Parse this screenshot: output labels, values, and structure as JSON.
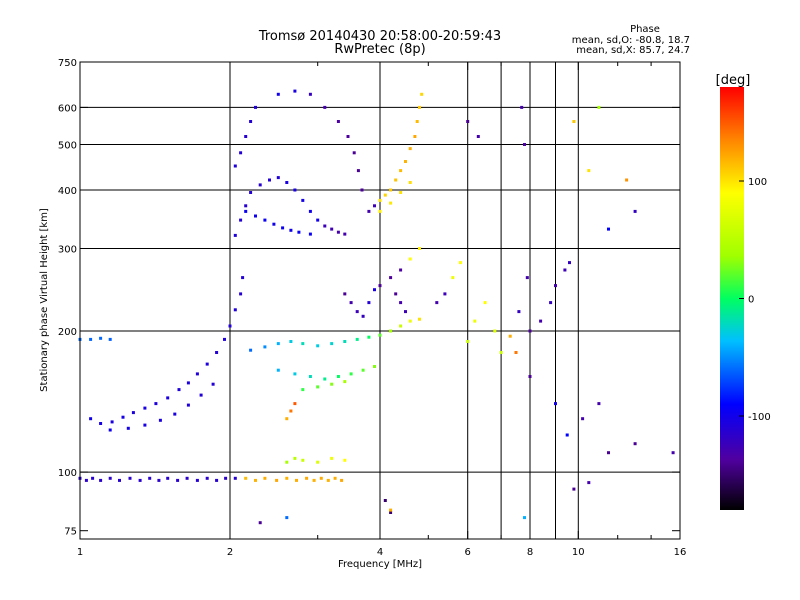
{
  "chart_data": {
    "type": "scatter",
    "title": "Tromsø 20140430 20:58:00-20:59:43",
    "subtitle": "RwPretec (8p)",
    "xlabel": "Frequency [MHz]",
    "ylabel": "Stationary phase Virtual Height [km]",
    "x_scale": "log",
    "y_scale": "log",
    "xlim": [
      1,
      16
    ],
    "ylim": [
      72,
      750
    ],
    "x_ticks": [
      1,
      2,
      4,
      6,
      8,
      10,
      16
    ],
    "x_tick_labels": [
      "1",
      "2",
      "4",
      "6",
      "8",
      "10",
      "16"
    ],
    "x_minor_ticks": [
      3,
      5,
      7,
      9,
      12,
      14
    ],
    "x_gridlines": [
      2,
      4,
      6,
      7,
      8,
      9,
      10
    ],
    "y_ticks": [
      75,
      100,
      200,
      300,
      400,
      500,
      600,
      750
    ],
    "y_tick_labels": [
      "75",
      "100",
      "200",
      "300",
      "400",
      "500",
      "600",
      "750"
    ],
    "y_gridlines": [
      100,
      200,
      300,
      400,
      500,
      600
    ],
    "grid": true,
    "stats_title": "Phase",
    "stats": [
      "mean, sd,O: -80.8, 18.7",
      "mean, sd,X:  85.7, 24.7"
    ],
    "colorbar": {
      "label": "[deg]",
      "range": [
        -180,
        180
      ],
      "ticks": [
        100,
        0,
        -100
      ],
      "tick_labels": [
        "100",
        "0",
        "-100"
      ]
    },
    "series": [
      {
        "points": [
          [
            1.0,
            97,
            -115
          ],
          [
            1.03,
            96,
            -115
          ],
          [
            1.06,
            97,
            -112
          ],
          [
            1.1,
            96,
            -114
          ],
          [
            1.15,
            97,
            -115
          ],
          [
            1.2,
            96,
            -113
          ],
          [
            1.26,
            97,
            -115
          ],
          [
            1.32,
            96,
            -114
          ],
          [
            1.38,
            97,
            -112
          ],
          [
            1.44,
            96,
            -115
          ],
          [
            1.5,
            97,
            -113
          ],
          [
            1.57,
            96,
            -114
          ],
          [
            1.64,
            97,
            -115
          ],
          [
            1.72,
            96,
            -112
          ],
          [
            1.8,
            97,
            -114
          ],
          [
            1.88,
            96,
            -113
          ],
          [
            1.96,
            97,
            -115
          ],
          [
            2.05,
            97,
            -112
          ],
          [
            2.15,
            97,
            115
          ],
          [
            2.25,
            96,
            118
          ],
          [
            2.35,
            97,
            120
          ],
          [
            2.48,
            96,
            122
          ],
          [
            2.6,
            97,
            118
          ],
          [
            2.72,
            96,
            120
          ],
          [
            2.85,
            97,
            122
          ],
          [
            2.95,
            96,
            119
          ],
          [
            3.05,
            97,
            121
          ],
          [
            3.15,
            96,
            118
          ],
          [
            3.25,
            97,
            120
          ],
          [
            3.35,
            96,
            122
          ],
          [
            1.05,
            130,
            -100
          ],
          [
            1.1,
            127,
            -103
          ],
          [
            1.16,
            128,
            -105
          ],
          [
            1.22,
            131,
            -102
          ],
          [
            1.28,
            134,
            -106
          ],
          [
            1.35,
            137,
            -104
          ],
          [
            1.42,
            140,
            -107
          ],
          [
            1.5,
            144,
            -105
          ],
          [
            1.58,
            150,
            -108
          ],
          [
            1.65,
            155,
            -106
          ],
          [
            1.72,
            162,
            -109
          ],
          [
            1.8,
            170,
            -107
          ],
          [
            1.88,
            180,
            -110
          ],
          [
            1.95,
            192,
            -108
          ],
          [
            2.0,
            205,
            -110
          ],
          [
            2.05,
            222,
            -108
          ],
          [
            2.1,
            240,
            -112
          ],
          [
            2.12,
            260,
            -110
          ],
          [
            1.15,
            123,
            -98
          ],
          [
            1.25,
            124,
            -102
          ],
          [
            1.35,
            126,
            -104
          ],
          [
            1.45,
            129,
            -105
          ],
          [
            1.55,
            133,
            -106
          ],
          [
            1.65,
            139,
            -108
          ],
          [
            1.75,
            146,
            -109
          ],
          [
            1.85,
            154,
            -110
          ],
          [
            1.0,
            192,
            -60
          ],
          [
            1.05,
            192,
            -62
          ],
          [
            1.1,
            193,
            -61
          ],
          [
            1.15,
            192,
            -63
          ],
          [
            2.05,
            320,
            -108
          ],
          [
            2.1,
            345,
            -110
          ],
          [
            2.15,
            370,
            -112
          ],
          [
            2.2,
            395,
            -111
          ],
          [
            2.3,
            410,
            -112
          ],
          [
            2.4,
            420,
            -110
          ],
          [
            2.5,
            425,
            -108
          ],
          [
            2.6,
            415,
            -105
          ],
          [
            2.7,
            400,
            -104
          ],
          [
            2.8,
            380,
            -102
          ],
          [
            2.9,
            360,
            -100
          ],
          [
            3.0,
            345,
            -100
          ],
          [
            3.1,
            335,
            -125
          ],
          [
            3.2,
            330,
            -128
          ],
          [
            3.3,
            325,
            -130
          ],
          [
            3.4,
            322,
            -130
          ],
          [
            2.15,
            360,
            -95
          ],
          [
            2.25,
            352,
            -98
          ],
          [
            2.35,
            345,
            -96
          ],
          [
            2.45,
            338,
            -100
          ],
          [
            2.55,
            332,
            -97
          ],
          [
            2.65,
            328,
            -99
          ],
          [
            2.75,
            325,
            -95
          ],
          [
            2.9,
            322,
            -96
          ],
          [
            2.05,
            450,
            -108
          ],
          [
            2.1,
            480,
            -110
          ],
          [
            2.15,
            520,
            -112
          ],
          [
            2.2,
            560,
            -110
          ],
          [
            2.25,
            600,
            -108
          ],
          [
            2.5,
            640,
            -100
          ],
          [
            2.7,
            650,
            -105
          ],
          [
            2.9,
            640,
            -120
          ],
          [
            3.1,
            600,
            -130
          ],
          [
            3.3,
            560,
            -135
          ],
          [
            3.45,
            520,
            -138
          ],
          [
            3.55,
            480,
            -140
          ],
          [
            3.62,
            440,
            -140
          ],
          [
            3.68,
            400,
            -138
          ],
          [
            3.8,
            360,
            -130
          ],
          [
            3.9,
            370,
            -125
          ],
          [
            4.0,
            380,
            100
          ],
          [
            4.1,
            390,
            105
          ],
          [
            4.2,
            400,
            110
          ],
          [
            4.3,
            420,
            112
          ],
          [
            4.4,
            440,
            115
          ],
          [
            4.5,
            460,
            118
          ],
          [
            4.6,
            490,
            120
          ],
          [
            4.7,
            520,
            122
          ],
          [
            4.75,
            560,
            115
          ],
          [
            4.8,
            600,
            110
          ],
          [
            4.85,
            640,
            105
          ],
          [
            4.0,
            360,
            95
          ],
          [
            4.2,
            375,
            98
          ],
          [
            4.4,
            395,
            100
          ],
          [
            4.6,
            415,
            102
          ],
          [
            4.0,
            250,
            -140
          ],
          [
            4.2,
            260,
            -138
          ],
          [
            4.4,
            270,
            -135
          ],
          [
            4.6,
            285,
            90
          ],
          [
            4.8,
            300,
            95
          ],
          [
            2.2,
            182,
            -60
          ],
          [
            2.35,
            185,
            -50
          ],
          [
            2.5,
            188,
            -40
          ],
          [
            2.65,
            190,
            -30
          ],
          [
            2.8,
            188,
            -20
          ],
          [
            3.0,
            186,
            -30
          ],
          [
            3.2,
            188,
            -25
          ],
          [
            3.4,
            190,
            -20
          ],
          [
            3.6,
            192,
            -10
          ],
          [
            3.8,
            194,
            0
          ],
          [
            4.0,
            196,
            20
          ],
          [
            4.2,
            200,
            40
          ],
          [
            4.4,
            205,
            60
          ],
          [
            4.6,
            210,
            80
          ],
          [
            4.8,
            212,
            100
          ],
          [
            2.5,
            165,
            -40
          ],
          [
            2.7,
            162,
            -30
          ],
          [
            2.9,
            160,
            -20
          ],
          [
            3.1,
            158,
            -10
          ],
          [
            3.3,
            160,
            0
          ],
          [
            3.5,
            162,
            10
          ],
          [
            3.7,
            165,
            20
          ],
          [
            3.9,
            168,
            30
          ],
          [
            2.8,
            150,
            10
          ],
          [
            3.0,
            152,
            20
          ],
          [
            3.2,
            154,
            30
          ],
          [
            3.4,
            156,
            40
          ],
          [
            2.6,
            130,
            120
          ],
          [
            2.65,
            135,
            140
          ],
          [
            2.7,
            140,
            150
          ],
          [
            2.6,
            105,
            40
          ],
          [
            2.7,
            107,
            50
          ],
          [
            2.8,
            106,
            60
          ],
          [
            3.0,
            105,
            70
          ],
          [
            3.2,
            107,
            80
          ],
          [
            3.4,
            106,
            90
          ],
          [
            3.4,
            240,
            -140
          ],
          [
            3.5,
            230,
            -130
          ],
          [
            3.6,
            220,
            -125
          ],
          [
            3.7,
            215,
            -120
          ],
          [
            3.8,
            230,
            -110
          ],
          [
            3.9,
            245,
            -105
          ],
          [
            4.3,
            240,
            -140
          ],
          [
            4.4,
            230,
            -130
          ],
          [
            4.5,
            220,
            -125
          ],
          [
            5.2,
            230,
            -130
          ],
          [
            5.4,
            240,
            -125
          ],
          [
            5.6,
            260,
            80
          ],
          [
            5.8,
            280,
            90
          ],
          [
            6.0,
            190,
            60
          ],
          [
            6.2,
            210,
            80
          ],
          [
            6.5,
            230,
            90
          ],
          [
            6.8,
            200,
            70
          ],
          [
            7.0,
            180,
            60
          ],
          [
            7.3,
            195,
            120
          ],
          [
            7.6,
            220,
            -120
          ],
          [
            7.9,
            260,
            -130
          ],
          [
            8.0,
            200,
            -140
          ],
          [
            8.4,
            210,
            -130
          ],
          [
            8.8,
            230,
            -120
          ],
          [
            9.0,
            250,
            -130
          ],
          [
            9.4,
            270,
            -125
          ],
          [
            9.6,
            280,
            -120
          ],
          [
            6.0,
            560,
            -140
          ],
          [
            6.3,
            520,
            -130
          ],
          [
            7.7,
            600,
            -130
          ],
          [
            7.8,
            500,
            -135
          ],
          [
            9.8,
            560,
            110
          ],
          [
            10.5,
            440,
            100
          ],
          [
            11.0,
            600,
            40
          ],
          [
            11.5,
            330,
            -90
          ],
          [
            12.5,
            420,
            130
          ],
          [
            13.0,
            360,
            -120
          ],
          [
            7.5,
            180,
            140
          ],
          [
            8.0,
            160,
            -140
          ],
          [
            9.0,
            140,
            -100
          ],
          [
            9.5,
            120,
            -90
          ],
          [
            10.2,
            130,
            -130
          ],
          [
            11.0,
            140,
            -130
          ],
          [
            11.5,
            110,
            -140
          ],
          [
            13.0,
            115,
            -140
          ],
          [
            15.5,
            110,
            -130
          ],
          [
            9.8,
            92,
            -140
          ],
          [
            10.5,
            95,
            -130
          ],
          [
            7.8,
            80,
            -40
          ],
          [
            4.1,
            87,
            -150
          ],
          [
            4.2,
            82,
            -150
          ],
          [
            4.2,
            83,
            120
          ],
          [
            2.3,
            78,
            -140
          ],
          [
            2.6,
            80,
            -60
          ]
        ]
      }
    ]
  }
}
